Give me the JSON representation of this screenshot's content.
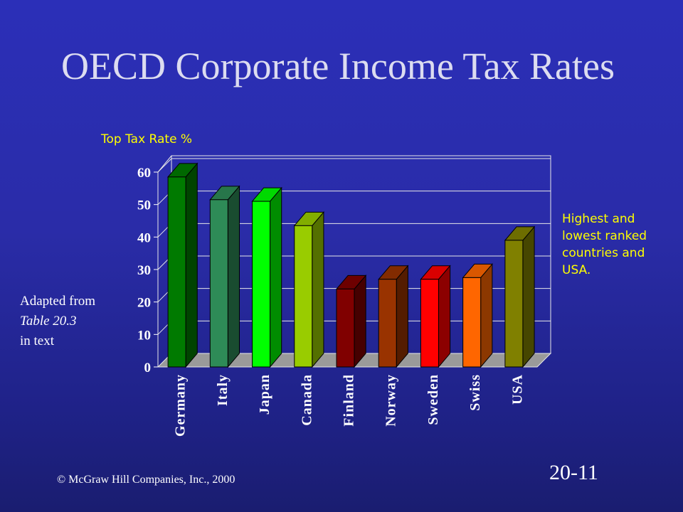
{
  "slide": {
    "title": "OECD Corporate Income Tax Rates",
    "source_line1": "Adapted from",
    "source_line2": "Table 20.3",
    "source_line3": "in text",
    "note": "Highest and lowest ranked countries and USA.",
    "footer": "© McGraw Hill Companies, Inc., 2000",
    "slide_number": "20-11"
  },
  "chart_data": {
    "type": "bar",
    "ylabel": "Top Tax Rate %",
    "xlabel": "",
    "ylim": [
      0,
      60
    ],
    "yticks": [
      0,
      10,
      20,
      30,
      40,
      50,
      60
    ],
    "grid": true,
    "categories": [
      "Germany",
      "Italy",
      "Japan",
      "Canada",
      "Finland",
      "Norway",
      "Sweden",
      "Swiss",
      "USA"
    ],
    "values": [
      58.5,
      51.5,
      51,
      43.5,
      24,
      27,
      27,
      27.5,
      39
    ],
    "colors": [
      "#007a00",
      "#2e8b57",
      "#00ff00",
      "#99cc00",
      "#800000",
      "#993300",
      "#ff0000",
      "#ff6600",
      "#808000"
    ]
  }
}
